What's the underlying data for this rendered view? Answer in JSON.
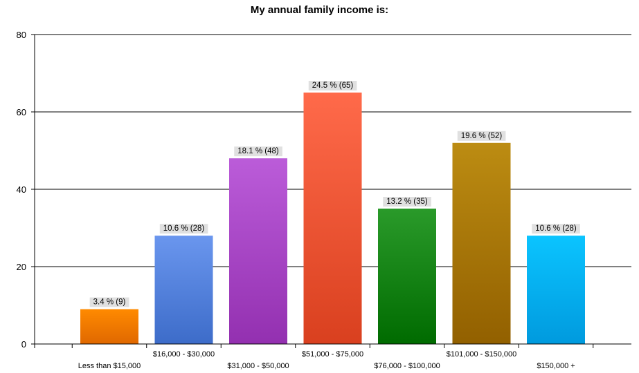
{
  "chart_data": {
    "type": "bar",
    "title": "My annual family income is:",
    "xlabel": "",
    "ylabel": "",
    "ylim": [
      0,
      80
    ],
    "yticks": [
      0,
      20,
      40,
      60,
      80
    ],
    "grid": true,
    "categories": [
      "Less than $15,000",
      "$16,000 - $30,000",
      "$31,000 - $50,000",
      "$51,000 - $75,000",
      "$76,000 - $100,000",
      "$101,000 - $150,000",
      "$150,000 +"
    ],
    "values": [
      9,
      28,
      48,
      65,
      35,
      52,
      28
    ],
    "data_labels": [
      "3.4 % (9)",
      "10.6 % (28)",
      "18.1 % (48)",
      "24.5 % (65)",
      "13.2 % (35)",
      "19.6 % (52)",
      "10.6 % (28)"
    ],
    "colors": [
      [
        "#ff8a00",
        "#e06800"
      ],
      [
        "#6a96ee",
        "#3d6cc9"
      ],
      [
        "#bb5cd9",
        "#9330b0"
      ],
      [
        "#ff6a4a",
        "#d9401f"
      ],
      [
        "#2a9a2a",
        "#006b00"
      ],
      [
        "#bc8c12",
        "#926000"
      ],
      [
        "#0bc4ff",
        "#009ade"
      ]
    ]
  }
}
